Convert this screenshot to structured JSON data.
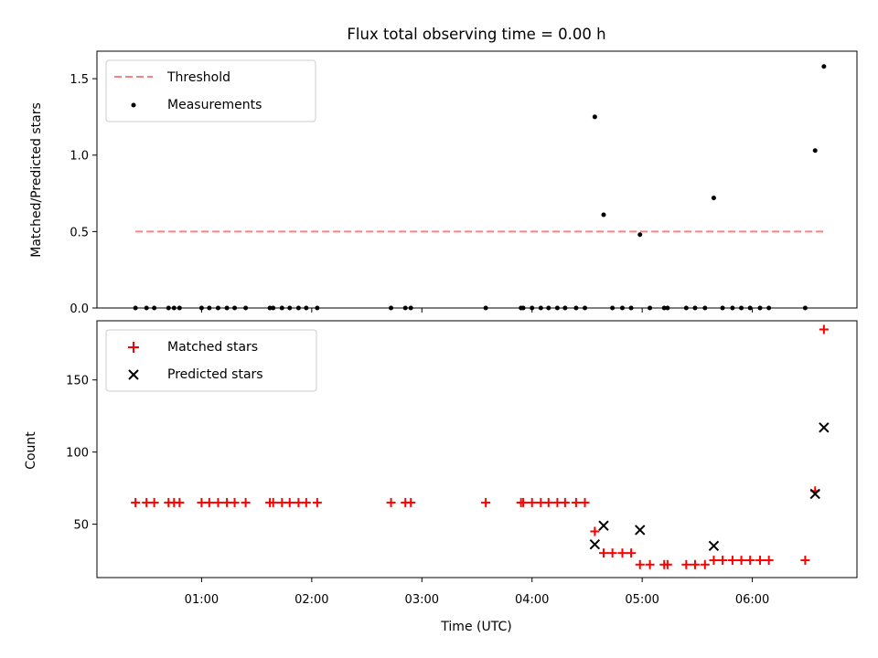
{
  "chart_data": {
    "title": "Flux total observing time = 0.00 h",
    "xlabel": "Time (UTC)",
    "x_ticks": [
      "01:00",
      "02:00",
      "03:00",
      "04:00",
      "05:00",
      "06:00"
    ],
    "x_tick_values": [
      1,
      2,
      3,
      4,
      5,
      6
    ],
    "xlim": [
      0.05,
      6.95
    ],
    "panels": [
      {
        "type": "scatter",
        "ylabel": "Matched/Predicted stars",
        "ylim": [
          0,
          1.68
        ],
        "y_ticks": [
          0.0,
          0.5,
          1.0,
          1.5
        ],
        "y_tick_labels": [
          "0.0",
          "0.5",
          "1.0",
          "1.5"
        ],
        "legend_position": "top-left",
        "series": [
          {
            "name": "Threshold",
            "kind": "dashed-line",
            "color": "#ff7f7f",
            "x": [
              0.4,
              6.65
            ],
            "y": [
              0.5,
              0.5
            ]
          },
          {
            "name": "Measurements",
            "kind": "dots",
            "color": "#000000",
            "x": [
              0.4,
              0.5,
              0.57,
              0.7,
              0.75,
              0.8,
              1.0,
              1.07,
              1.15,
              1.23,
              1.3,
              1.4,
              1.62,
              1.65,
              1.73,
              1.8,
              1.88,
              1.95,
              2.05,
              2.72,
              2.85,
              2.9,
              3.58,
              3.9,
              3.92,
              4.0,
              4.08,
              4.15,
              4.23,
              4.3,
              4.4,
              4.48,
              4.57,
              4.65,
              4.73,
              4.82,
              4.9,
              4.98,
              5.07,
              5.2,
              5.23,
              5.4,
              5.48,
              5.57,
              5.65,
              5.73,
              5.82,
              5.9,
              5.98,
              6.07,
              6.15,
              6.48,
              6.57,
              6.65
            ],
            "y": [
              0,
              0,
              0,
              0,
              0,
              0,
              0,
              0,
              0,
              0,
              0,
              0,
              0,
              0,
              0,
              0,
              0,
              0,
              0,
              0,
              0,
              0,
              0,
              0,
              0,
              0,
              0,
              0,
              0,
              0,
              0,
              0,
              1.25,
              0.61,
              0,
              0,
              0,
              0.48,
              0,
              0,
              0,
              0,
              0,
              0,
              0.72,
              0,
              0,
              0,
              0,
              0,
              0,
              0,
              1.03,
              1.58
            ]
          }
        ]
      },
      {
        "type": "scatter",
        "ylabel": "Count",
        "ylim": [
          13,
          191
        ],
        "y_ticks": [
          50,
          100,
          150
        ],
        "y_tick_labels": [
          "50",
          "100",
          "150"
        ],
        "legend_position": "top-left",
        "series": [
          {
            "name": "Matched stars",
            "kind": "plus",
            "color": "#ff0000",
            "x": [
              0.4,
              0.5,
              0.57,
              0.7,
              0.75,
              0.8,
              1.0,
              1.07,
              1.15,
              1.23,
              1.3,
              1.4,
              1.62,
              1.65,
              1.73,
              1.8,
              1.88,
              1.95,
              2.05,
              2.72,
              2.85,
              2.9,
              3.58,
              3.9,
              3.92,
              4.0,
              4.08,
              4.15,
              4.23,
              4.3,
              4.4,
              4.48,
              4.57,
              4.65,
              4.73,
              4.82,
              4.9,
              4.98,
              5.07,
              5.2,
              5.23,
              5.4,
              5.48,
              5.57,
              5.65,
              5.73,
              5.82,
              5.9,
              5.98,
              6.07,
              6.15,
              6.48,
              6.57,
              6.65
            ],
            "y": [
              65,
              65,
              65,
              65,
              65,
              65,
              65,
              65,
              65,
              65,
              65,
              65,
              65,
              65,
              65,
              65,
              65,
              65,
              65,
              65,
              65,
              65,
              65,
              65,
              65,
              65,
              65,
              65,
              65,
              65,
              65,
              65,
              45,
              30,
              30,
              30,
              30,
              22,
              22,
              22,
              22,
              22,
              22,
              22,
              25,
              25,
              25,
              25,
              25,
              25,
              25,
              25,
              73,
              185
            ]
          },
          {
            "name": "Predicted stars",
            "kind": "x",
            "color": "#000000",
            "x": [
              4.57,
              4.65,
              4.98,
              5.65,
              6.57,
              6.65
            ],
            "y": [
              36,
              49,
              46,
              35,
              71,
              117
            ]
          }
        ]
      }
    ]
  }
}
